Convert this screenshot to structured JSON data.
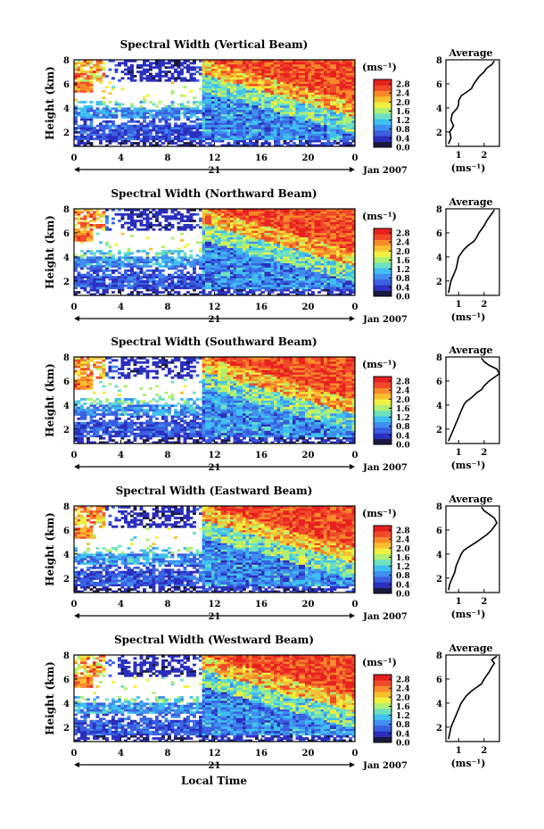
{
  "figure": {
    "xlabel": "Local Time",
    "date_label": "Jan 2007",
    "day_label": "21",
    "ylabel": "Height (km)",
    "colorbar_unit": "(ms⁻¹)",
    "avg_title": "Average",
    "avg_unit": "(ms⁻¹)",
    "colormap": [
      "#1a1a40",
      "#2b2fbf",
      "#3a5fe0",
      "#3f8ff0",
      "#3fc0f0",
      "#6ee0c0",
      "#b0ef70",
      "#f0f040",
      "#f8c030",
      "#f88a2a",
      "#f04a2a",
      "#e82020"
    ]
  },
  "chart_data": [
    {
      "type": "heatmap",
      "title": "Spectral Width (Vertical Beam)",
      "x_ticks": [
        "0",
        "4",
        "8",
        "12",
        "16",
        "20",
        "0"
      ],
      "x_range_hours": [
        0,
        24
      ],
      "y_ticks": [
        "2",
        "4",
        "6",
        "8"
      ],
      "y_range_km": [
        0.8,
        8.0
      ],
      "colorbar_ticks": [
        "2.8",
        "2.4",
        "2.0",
        "1.6",
        "1.2",
        "0.8",
        "0.4",
        "0.0"
      ],
      "colorbar_range": [
        0.0,
        3.0
      ],
      "average_profile": {
        "x_ticks": [
          "1",
          "2"
        ],
        "x_range": [
          0.5,
          2.6
        ],
        "y_ticks": [
          "2",
          "4",
          "6",
          "8"
        ],
        "width": [
          0.6,
          0.7,
          0.65,
          0.8,
          0.7,
          0.75,
          0.95,
          1.0,
          1.0,
          1.1,
          1.3,
          1.5,
          1.6,
          1.7,
          1.8,
          2.0,
          2.1,
          2.3,
          2.4
        ],
        "height": [
          1.0,
          1.5,
          2.0,
          2.5,
          3.0,
          3.5,
          4.0,
          4.3,
          4.6,
          5.0,
          5.3,
          5.6,
          6.0,
          6.3,
          6.6,
          7.0,
          7.3,
          7.6,
          7.9
        ]
      }
    },
    {
      "type": "heatmap",
      "title": "Spectral Width (Northward Beam)",
      "x_ticks": [
        "0",
        "4",
        "8",
        "12",
        "16",
        "20",
        "0"
      ],
      "x_range_hours": [
        0,
        24
      ],
      "y_ticks": [
        "2",
        "4",
        "6",
        "8"
      ],
      "y_range_km": [
        0.8,
        8.0
      ],
      "colorbar_ticks": [
        "2.8",
        "2.4",
        "2.0",
        "1.6",
        "1.2",
        "0.8",
        "0.4",
        "0.0"
      ],
      "colorbar_range": [
        0.0,
        3.0
      ],
      "average_profile": {
        "x_ticks": [
          "1",
          "2"
        ],
        "x_range": [
          0.5,
          2.6
        ],
        "y_ticks": [
          "2",
          "4",
          "6",
          "8"
        ],
        "width": [
          0.6,
          0.65,
          0.7,
          0.8,
          0.9,
          0.95,
          1.0,
          1.1,
          1.2,
          1.4,
          1.6,
          1.7,
          1.8,
          1.9,
          2.0,
          2.1,
          2.2,
          2.3,
          2.4
        ],
        "height": [
          1.0,
          1.5,
          2.0,
          2.5,
          3.0,
          3.5,
          4.0,
          4.3,
          4.6,
          5.0,
          5.3,
          5.6,
          6.0,
          6.3,
          6.6,
          7.0,
          7.3,
          7.6,
          7.9
        ]
      }
    },
    {
      "type": "heatmap",
      "title": "Spectral Width (Southward Beam)",
      "x_ticks": [
        "0",
        "4",
        "8",
        "12",
        "16",
        "20",
        "0"
      ],
      "x_range_hours": [
        0,
        24
      ],
      "y_ticks": [
        "2",
        "4",
        "6",
        "8"
      ],
      "y_range_km": [
        0.8,
        8.0
      ],
      "colorbar_ticks": [
        "2.8",
        "2.4",
        "2.0",
        "1.6",
        "1.2",
        "0.8",
        "0.4",
        "0.0"
      ],
      "colorbar_range": [
        0.0,
        3.0
      ],
      "average_profile": {
        "x_ticks": [
          "1",
          "2"
        ],
        "x_range": [
          0.5,
          2.6
        ],
        "y_ticks": [
          "2",
          "4",
          "6",
          "8"
        ],
        "width": [
          0.6,
          0.7,
          0.8,
          0.9,
          1.0,
          1.1,
          1.2,
          1.3,
          1.5,
          1.7,
          1.9,
          2.0,
          2.2,
          2.4,
          2.6,
          2.5,
          2.2,
          2.0,
          1.9
        ],
        "height": [
          1.0,
          1.5,
          2.0,
          2.5,
          3.0,
          3.5,
          4.0,
          4.3,
          4.6,
          5.0,
          5.3,
          5.6,
          6.0,
          6.3,
          6.6,
          7.0,
          7.3,
          7.6,
          7.9
        ]
      }
    },
    {
      "type": "heatmap",
      "title": "Spectral Width (Eastward Beam)",
      "x_ticks": [
        "0",
        "4",
        "8",
        "12",
        "16",
        "20",
        "0"
      ],
      "x_range_hours": [
        0,
        24
      ],
      "y_ticks": [
        "2",
        "4",
        "6",
        "8"
      ],
      "y_range_km": [
        0.8,
        8.0
      ],
      "colorbar_ticks": [
        "2.8",
        "2.4",
        "2.0",
        "1.6",
        "1.2",
        "0.8",
        "0.4",
        "0.0"
      ],
      "colorbar_range": [
        0.0,
        3.0
      ],
      "average_profile": {
        "x_ticks": [
          "1",
          "2"
        ],
        "x_range": [
          0.5,
          2.6
        ],
        "y_ticks": [
          "2",
          "4",
          "6",
          "8"
        ],
        "width": [
          0.6,
          0.65,
          0.75,
          0.85,
          0.9,
          1.0,
          1.1,
          1.2,
          1.4,
          1.7,
          1.9,
          2.1,
          2.3,
          2.4,
          2.5,
          2.4,
          2.2,
          2.0,
          1.9
        ],
        "height": [
          1.0,
          1.5,
          2.0,
          2.5,
          3.0,
          3.5,
          4.0,
          4.3,
          4.6,
          5.0,
          5.3,
          5.6,
          6.0,
          6.3,
          6.6,
          7.0,
          7.3,
          7.6,
          7.9
        ]
      }
    },
    {
      "type": "heatmap",
      "title": "Spectral Width (Westward Beam)",
      "x_ticks": [
        "0",
        "4",
        "8",
        "12",
        "16",
        "20",
        "0"
      ],
      "x_range_hours": [
        0,
        24
      ],
      "y_ticks": [
        "2",
        "4",
        "6",
        "8"
      ],
      "y_range_km": [
        0.8,
        8.0
      ],
      "colorbar_ticks": [
        "2.8",
        "2.4",
        "2.0",
        "1.6",
        "1.2",
        "0.8",
        "0.4",
        "0.0"
      ],
      "colorbar_range": [
        0.0,
        3.0
      ],
      "average_profile": {
        "x_ticks": [
          "1",
          "2"
        ],
        "x_range": [
          0.5,
          2.6
        ],
        "y_ticks": [
          "2",
          "4",
          "6",
          "8"
        ],
        "width": [
          0.6,
          0.65,
          0.7,
          0.8,
          0.9,
          1.0,
          1.1,
          1.2,
          1.3,
          1.5,
          1.7,
          1.9,
          2.0,
          2.1,
          2.2,
          2.3,
          2.4,
          2.3,
          2.5
        ],
        "height": [
          1.0,
          1.5,
          2.0,
          2.5,
          3.0,
          3.5,
          4.0,
          4.3,
          4.6,
          5.0,
          5.3,
          5.6,
          6.0,
          6.3,
          6.6,
          7.0,
          7.3,
          7.6,
          7.9
        ]
      }
    }
  ]
}
